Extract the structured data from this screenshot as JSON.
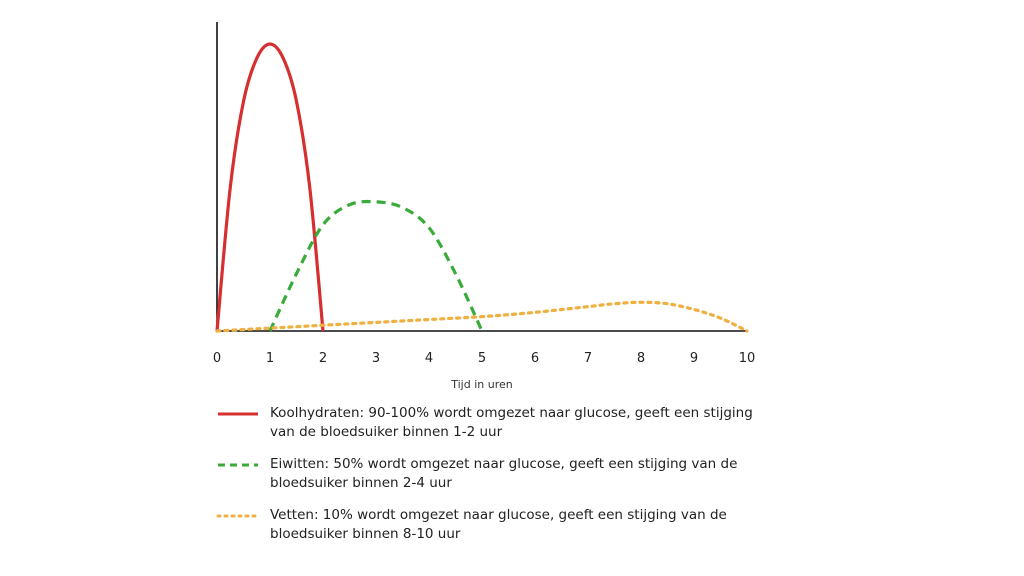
{
  "chart_data": {
    "type": "line",
    "title": "",
    "xlabel": "Tijd in uren",
    "ylabel": "",
    "xlim": [
      0,
      10
    ],
    "ylim": [
      0,
      1
    ],
    "x_ticks": [
      "0",
      "1",
      "2",
      "3",
      "4",
      "5",
      "6",
      "7",
      "8",
      "9",
      "10"
    ],
    "grid": false,
    "legend": "bottom",
    "series": [
      {
        "name": "Koolhydraten: 90-100% wordt omgezet naar glucose, geeft een stijging van de bloedsuiker binnen 1-2 uur",
        "color": "#d62f2f",
        "style": "solid",
        "x": [
          0,
          0.25,
          0.5,
          0.75,
          1,
          1.25,
          1.5,
          1.75,
          2
        ],
        "y": [
          0,
          0.5,
          0.8,
          0.95,
          1.0,
          0.95,
          0.8,
          0.5,
          0
        ]
      },
      {
        "name": "Eiwitten: 50% wordt omgezet naar glucose, geeft een stijging van de bloedsuiker binnen 2-4 uur",
        "color": "#3aaa3a",
        "style": "dashed",
        "x": [
          1,
          1.5,
          2,
          2.5,
          3,
          3.5,
          4,
          4.5,
          5
        ],
        "y": [
          0,
          0.2,
          0.37,
          0.44,
          0.45,
          0.43,
          0.36,
          0.2,
          0
        ]
      },
      {
        "name": "Vetten: 10% wordt omgezet naar glucose, geeft een stijging van de bloedsuiker binnen 8-10 uur",
        "color": "#f0b040",
        "style": "dotted",
        "x": [
          0,
          1,
          2,
          3,
          4,
          5,
          6,
          7,
          7.5,
          8,
          8.5,
          9,
          9.5,
          10
        ],
        "y": [
          0,
          0.01,
          0.02,
          0.03,
          0.04,
          0.05,
          0.065,
          0.085,
          0.095,
          0.1,
          0.095,
          0.075,
          0.045,
          0
        ]
      }
    ]
  }
}
